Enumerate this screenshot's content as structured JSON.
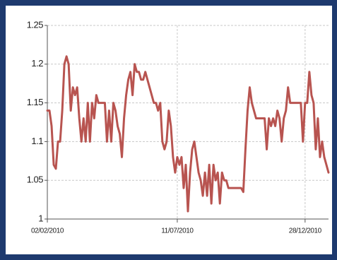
{
  "chart_data": {
    "type": "line",
    "xticks": [
      {
        "value": 0,
        "label": "02/02/2010"
      },
      {
        "value": 61,
        "label": "11/07/2010"
      },
      {
        "value": 121,
        "label": "28/12/2010"
      }
    ],
    "xlim": [
      0,
      132
    ],
    "ylim": [
      1,
      1.25
    ],
    "yticks": [
      1,
      1.05,
      1.1,
      1.15,
      1.2,
      1.25
    ],
    "grid": true,
    "color": "#b85450",
    "values": [
      1.14,
      1.14,
      1.12,
      1.07,
      1.065,
      1.1,
      1.1,
      1.14,
      1.2,
      1.21,
      1.2,
      1.14,
      1.17,
      1.16,
      1.17,
      1.13,
      1.1,
      1.13,
      1.1,
      1.15,
      1.1,
      1.15,
      1.13,
      1.16,
      1.15,
      1.15,
      1.15,
      1.15,
      1.1,
      1.14,
      1.1,
      1.15,
      1.14,
      1.12,
      1.11,
      1.08,
      1.13,
      1.16,
      1.18,
      1.19,
      1.16,
      1.2,
      1.19,
      1.19,
      1.18,
      1.18,
      1.19,
      1.18,
      1.17,
      1.16,
      1.15,
      1.15,
      1.14,
      1.15,
      1.1,
      1.09,
      1.1,
      1.14,
      1.12,
      1.08,
      1.06,
      1.08,
      1.07,
      1.08,
      1.04,
      1.07,
      1.01,
      1.06,
      1.09,
      1.1,
      1.08,
      1.06,
      1.05,
      1.03,
      1.06,
      1.03,
      1.07,
      1.02,
      1.07,
      1.05,
      1.06,
      1.02,
      1.06,
      1.05,
      1.05,
      1.04,
      1.04,
      1.04,
      1.04,
      1.04,
      1.04,
      1.04,
      1.035,
      1.09,
      1.14,
      1.17,
      1.15,
      1.14,
      1.13,
      1.13,
      1.13,
      1.13,
      1.13,
      1.09,
      1.13,
      1.12,
      1.13,
      1.12,
      1.14,
      1.13,
      1.1,
      1.13,
      1.14,
      1.17,
      1.15,
      1.15,
      1.15,
      1.15,
      1.15,
      1.15,
      1.1,
      1.15,
      1.15,
      1.19,
      1.16,
      1.15,
      1.09,
      1.13,
      1.08,
      1.1,
      1.08,
      1.07,
      1.06
    ]
  }
}
